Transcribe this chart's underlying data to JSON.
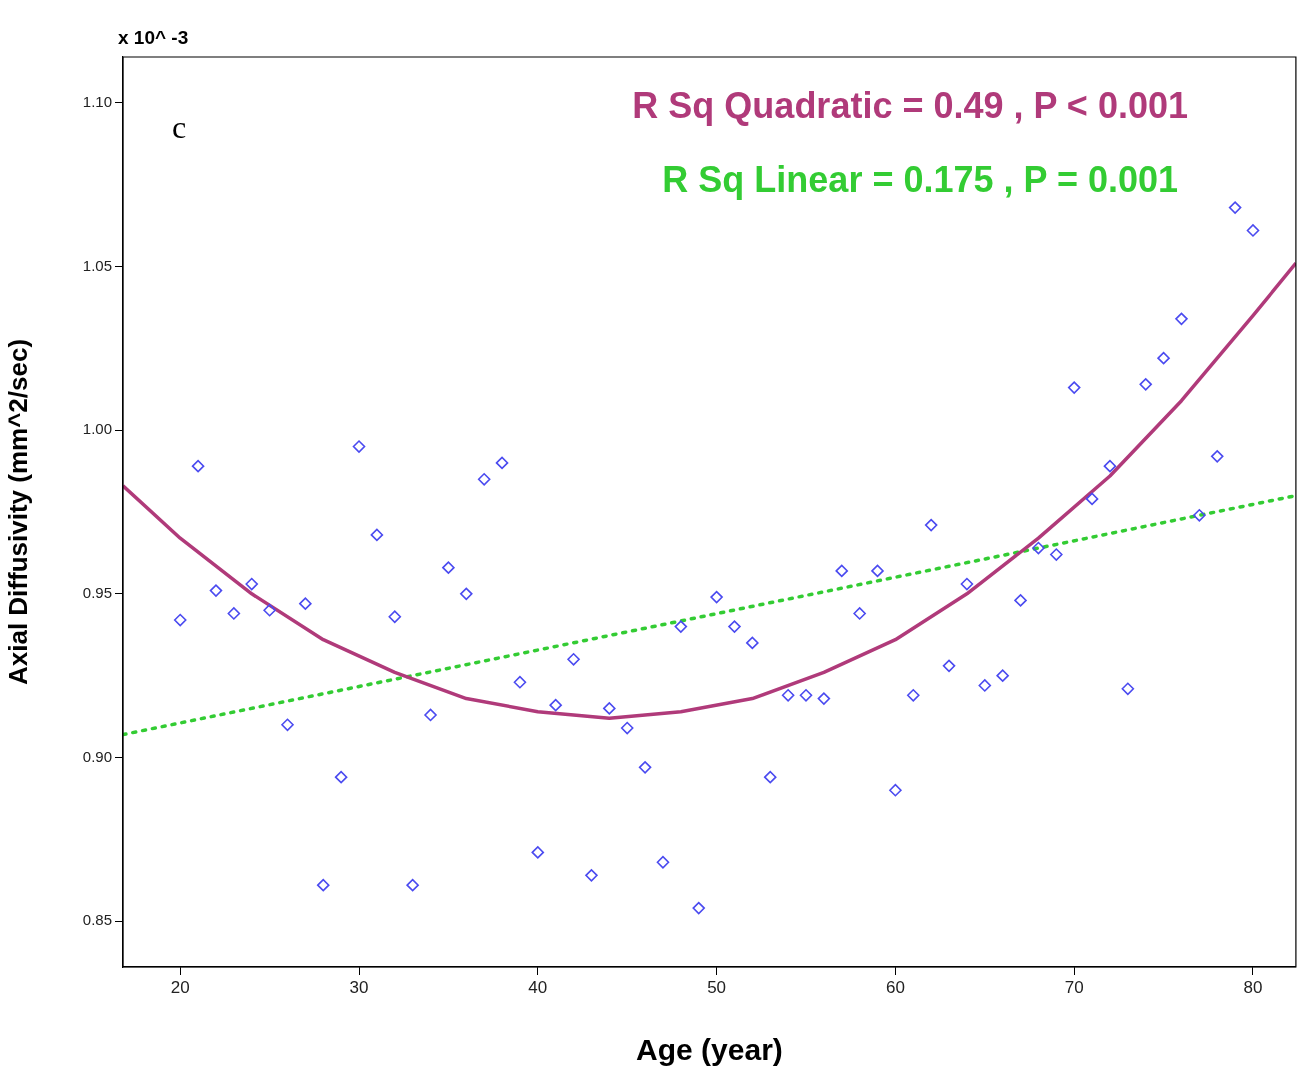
{
  "chart_data": {
    "type": "scatter",
    "xlabel": "Age (year)",
    "ylabel": "Axial Diffusivity (mm^2/sec)",
    "xlim": [
      16.8,
      82.4
    ],
    "ylim": [
      0.836,
      1.114
    ],
    "xticks": [
      20,
      30,
      40,
      50,
      60,
      70,
      80
    ],
    "yticks": [
      {
        "value": 0.85,
        "label": "0.85"
      },
      {
        "value": 0.9,
        "label": "0.90"
      },
      {
        "value": 0.95,
        "label": "0.95"
      },
      {
        "value": 1.0,
        "label": "1.00"
      },
      {
        "value": 1.05,
        "label": "1.05"
      },
      {
        "value": 1.1,
        "label": "1.10"
      }
    ],
    "grid": false,
    "legend": false,
    "annotations": [
      "x 10^ -3",
      "c",
      "R Sq Quadratic = 0.49 , P < 0.001",
      "R Sq Linear = 0.175 , P = 0.001"
    ],
    "series": [
      {
        "color": "#4a4af0",
        "marker": "diamond",
        "x": [
          20,
          21,
          22,
          23,
          24,
          25,
          26,
          27,
          28,
          29,
          30,
          31,
          32,
          33,
          34,
          35,
          36,
          37,
          38,
          39,
          40,
          41,
          42,
          43,
          44,
          45,
          46,
          47,
          48,
          49,
          50,
          51,
          52,
          53,
          54,
          55,
          56,
          57,
          58,
          59,
          60,
          61,
          62,
          63,
          64,
          65,
          66,
          67,
          68,
          69,
          70,
          71,
          72,
          73,
          74,
          75,
          76,
          77,
          78,
          79,
          80
        ],
        "values": [
          0.942,
          0.989,
          0.951,
          0.944,
          0.953,
          0.945,
          0.91,
          0.947,
          0.861,
          0.894,
          0.995,
          0.968,
          0.943,
          0.861,
          0.913,
          0.958,
          0.95,
          0.985,
          0.99,
          0.923,
          0.871,
          0.916,
          0.93,
          0.864,
          0.915,
          0.909,
          0.897,
          0.868,
          0.94,
          0.854,
          0.949,
          0.94,
          0.935,
          0.894,
          0.919,
          0.919,
          0.918,
          0.957,
          0.944,
          0.957,
          0.89,
          0.919,
          0.971,
          0.928,
          0.953,
          0.922,
          0.925,
          0.948,
          0.964,
          0.962,
          1.013,
          0.979,
          0.989,
          0.921,
          1.014,
          1.022,
          1.034,
          0.974,
          0.992,
          1.068,
          1.061
        ]
      },
      {
        "type": "line",
        "color": "#b03a7a",
        "marker": "none",
        "line_style": "solid",
        "x": [
          16.8,
          20,
          24,
          28,
          32,
          36,
          40,
          44,
          48,
          52,
          56,
          60,
          64,
          68,
          72,
          76,
          80,
          82.4
        ],
        "values": [
          0.983,
          0.967,
          0.95,
          0.936,
          0.926,
          0.918,
          0.914,
          0.912,
          0.914,
          0.918,
          0.926,
          0.936,
          0.95,
          0.967,
          0.986,
          1.009,
          1.035,
          1.051
        ]
      },
      {
        "type": "line",
        "color": "#33cc33",
        "marker": "none",
        "line_style": "dotted",
        "x": [
          16.8,
          82.4
        ],
        "values": [
          0.907,
          0.98
        ]
      }
    ]
  }
}
